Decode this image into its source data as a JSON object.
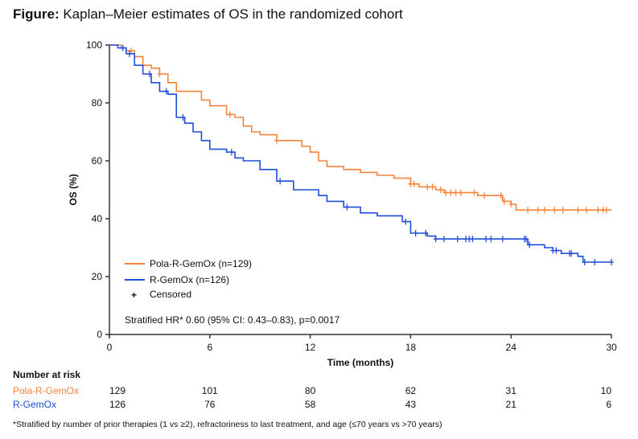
{
  "title_prefix": "Figure:",
  "title_text": " Kaplan–Meier estimates of OS in the randomized cohort",
  "footnote": "*Stratified by number of prior therapies (1 vs ≥2), refractoriness to last treatment, and age (≤70 years vs >70 years)",
  "chart_data": {
    "type": "line",
    "subtype": "kaplan-meier-step",
    "xlabel": "Time (months)",
    "ylabel": "OS (%)",
    "xlim": [
      0,
      30
    ],
    "ylim": [
      0,
      100
    ],
    "xticks": [
      0,
      6,
      12,
      18,
      24,
      30
    ],
    "yticks": [
      0,
      20,
      40,
      60,
      80,
      100
    ],
    "grid": false,
    "legend_placement": "bottom-left",
    "censored_label": "Censored",
    "annotation": "Stratified HR* 0.60 (95% CI: 0.43–0.83), p=0.0017",
    "series": [
      {
        "name": "Pola-R-GemOx (n=129)",
        "color": "#f5843a",
        "x": [
          0,
          0.7,
          1,
          1.5,
          2,
          2.5,
          3,
          3.5,
          4,
          5,
          5.5,
          6,
          7,
          7.5,
          8,
          8.5,
          9,
          10,
          11,
          11.5,
          12,
          12.5,
          13,
          14,
          15,
          16,
          17,
          18,
          18.5,
          19.5,
          20,
          22,
          23.5,
          24,
          24.3,
          30
        ],
        "y": [
          100,
          99,
          98,
          96,
          93,
          92,
          90,
          87,
          84,
          84,
          81,
          79,
          76,
          75,
          72,
          70,
          69,
          67,
          67,
          65,
          63,
          60,
          58,
          57,
          56,
          55,
          54,
          52,
          51,
          50,
          49,
          48,
          46,
          45,
          43,
          43
        ],
        "censored": [
          1.3,
          3,
          7.2,
          10,
          18,
          18.2,
          19,
          19.3,
          19.8,
          20.1,
          20.4,
          20.7,
          21,
          21.8,
          22.4,
          23.4,
          23.6,
          24,
          25,
          25.6,
          26,
          26.6,
          27.1,
          28,
          28.5,
          29.2,
          29.5,
          29.7
        ]
      },
      {
        "name": "R-GemOx (n=126)",
        "color": "#1f4fd8",
        "x": [
          0,
          0.5,
          1,
          1.5,
          2,
          2.5,
          3,
          3.5,
          4,
          4.5,
          5,
          5.5,
          6,
          7,
          7.5,
          8,
          9,
          10,
          11,
          12,
          12.5,
          13,
          14,
          15,
          16,
          17.5,
          18,
          19,
          19.5,
          24.7,
          25,
          26,
          26.5,
          27,
          28,
          28.3,
          30
        ],
        "y": [
          100,
          99,
          97,
          93,
          90,
          87,
          84,
          83,
          75,
          73,
          70,
          67,
          64,
          63,
          61,
          60,
          57,
          53,
          50,
          50,
          48,
          46,
          44,
          42,
          41,
          39,
          35,
          34,
          33,
          33,
          31,
          30,
          29,
          28,
          27,
          25,
          25
        ],
        "censored": [
          0.8,
          1.2,
          2.4,
          3.4,
          4.4,
          7.3,
          10.2,
          14.2,
          17.7,
          18.3,
          18.9,
          19.5,
          20,
          20.8,
          21.3,
          21.5,
          21.7,
          22.5,
          22.8,
          23.5,
          24.8,
          24.9,
          25.1,
          26.5,
          26.7,
          27.5,
          27.6,
          28.4,
          29,
          30
        ]
      }
    ],
    "risk_table": {
      "title": "Number at risk",
      "times": [
        0,
        6,
        12,
        18,
        24,
        30
      ],
      "rows": [
        {
          "label": "Pola-R-GemOx",
          "color": "#f5843a",
          "values": [
            129,
            101,
            80,
            62,
            31,
            10
          ]
        },
        {
          "label": "R-GemOx",
          "color": "#1f4fd8",
          "values": [
            126,
            76,
            58,
            43,
            21,
            6
          ]
        }
      ]
    }
  }
}
